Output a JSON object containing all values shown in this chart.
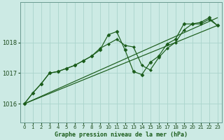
{
  "background_color": "#cceae4",
  "grid_color": "#aad4cc",
  "line_color": "#1a5c1a",
  "title": "Graphe pression niveau de la mer (hPa)",
  "xlim": [
    -0.5,
    23.5
  ],
  "ylim": [
    1015.4,
    1019.3
  ],
  "yticks": [
    1016,
    1017,
    1018
  ],
  "xticks": [
    0,
    1,
    2,
    3,
    4,
    5,
    6,
    7,
    8,
    9,
    10,
    11,
    12,
    13,
    14,
    15,
    16,
    17,
    18,
    19,
    20,
    21,
    22,
    23
  ],
  "series_main": [
    1016.0,
    1016.35,
    1016.65,
    1017.0,
    1017.05,
    1017.15,
    1017.25,
    1017.4,
    1017.55,
    1017.75,
    1018.25,
    1018.35,
    1017.75,
    1017.05,
    1016.95,
    1017.35,
    1017.55,
    1017.95,
    1018.1,
    1018.6,
    1018.6,
    1018.65,
    1018.8,
    1018.55
  ],
  "series_secondary": [
    1016.0,
    1016.35,
    1016.65,
    1017.0,
    1017.05,
    1017.15,
    1017.25,
    1017.4,
    1017.55,
    1017.8,
    1017.95,
    1018.1,
    1017.9,
    1017.85,
    1017.25,
    1017.1,
    1017.5,
    1017.8,
    1018.0,
    1018.4,
    1018.6,
    1018.6,
    1018.75,
    1018.55
  ],
  "trend1_x": [
    0,
    23
  ],
  "trend1_y": [
    1016.0,
    1018.55
  ],
  "trend2_x": [
    0,
    23
  ],
  "trend2_y": [
    1016.0,
    1018.8
  ]
}
